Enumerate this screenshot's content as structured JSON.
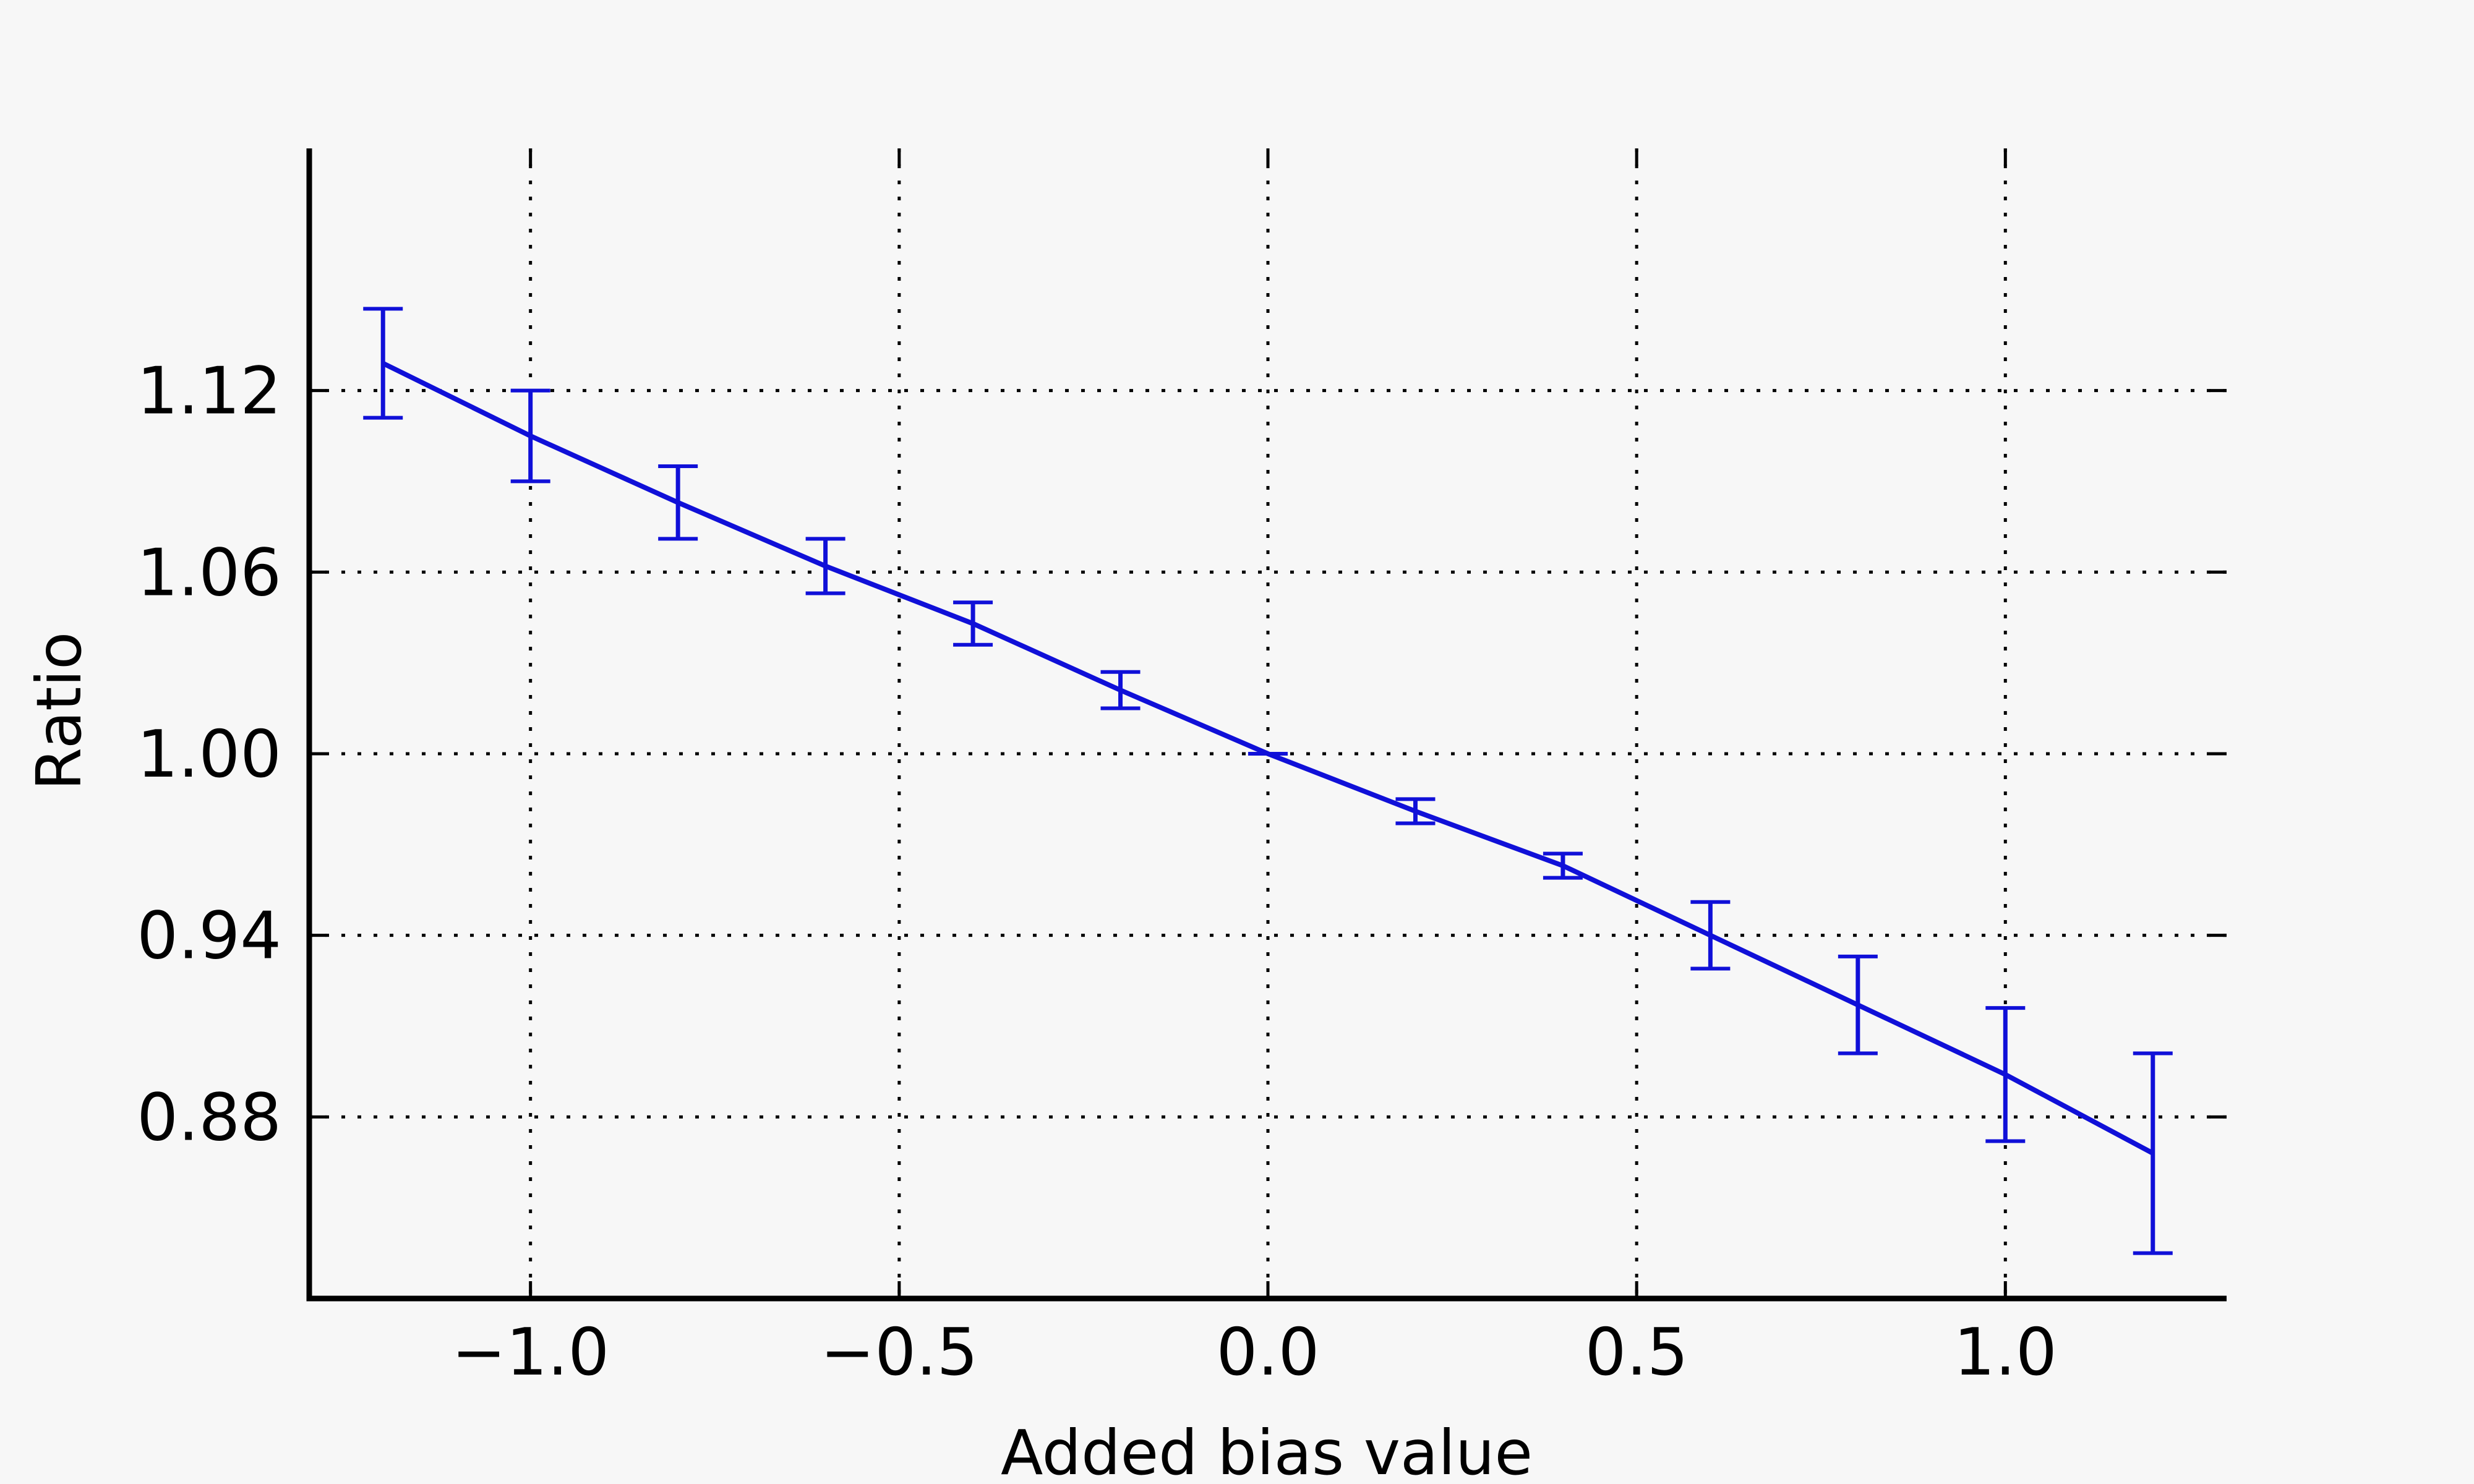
{
  "chart_data": {
    "type": "line",
    "title": "",
    "xlabel": "Added bias value",
    "ylabel": "Ratio",
    "xlim": [
      -1.3,
      1.3
    ],
    "ylim": [
      0.82,
      1.2
    ],
    "xticks": [
      -1.0,
      -0.5,
      0.0,
      0.5,
      1.0
    ],
    "xtick_labels": [
      "−1.0",
      "−0.5",
      "0.0",
      "0.5",
      "1.0"
    ],
    "yticks": [
      0.88,
      0.94,
      1.0,
      1.06,
      1.12
    ],
    "ytick_labels": [
      "0.88",
      "0.94",
      "1.00",
      "1.06",
      "1.12"
    ],
    "grid": true,
    "series": [
      {
        "color": "#1010d8",
        "x": [
          -1.2,
          -1.0,
          -0.8,
          -0.6,
          -0.4,
          -0.2,
          0.0,
          0.2,
          0.4,
          0.6,
          0.8,
          1.0,
          1.2
        ],
        "y": [
          1.129,
          1.105,
          1.083,
          1.062,
          1.043,
          1.021,
          1.0,
          0.981,
          0.963,
          0.94,
          0.917,
          0.894,
          0.868
        ],
        "yerr": [
          0.018,
          0.015,
          0.012,
          0.009,
          0.007,
          0.006,
          0.0,
          0.004,
          0.004,
          0.011,
          0.016,
          0.022,
          0.033
        ]
      }
    ]
  }
}
